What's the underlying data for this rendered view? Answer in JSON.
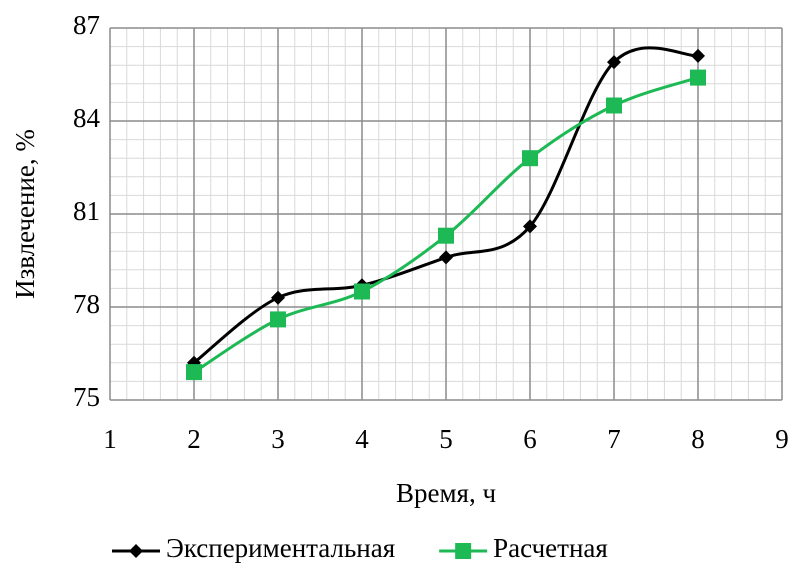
{
  "chart_data": {
    "type": "line",
    "x_label": "Время, ч",
    "y_label": "Извлечение, %",
    "x": [
      2,
      3,
      4,
      5,
      6,
      7,
      8
    ],
    "series": [
      {
        "name": "Экспериментальная",
        "color": "#000000",
        "marker": "diamond",
        "values": [
          76.2,
          78.3,
          78.7,
          79.6,
          80.6,
          85.9,
          86.1
        ]
      },
      {
        "name": "Расчетная",
        "color": "#1db954",
        "marker": "square",
        "values": [
          75.9,
          77.6,
          78.5,
          80.3,
          82.8,
          84.5,
          85.4
        ]
      }
    ],
    "xlim": [
      1,
      9
    ],
    "xticks": [
      1,
      2,
      3,
      4,
      5,
      6,
      7,
      8,
      9
    ],
    "ylim": [
      75,
      87
    ],
    "yticks": [
      75,
      78,
      81,
      84,
      87
    ],
    "grid": true,
    "minor_grid": true,
    "smooth": true,
    "legend": "bottom"
  }
}
